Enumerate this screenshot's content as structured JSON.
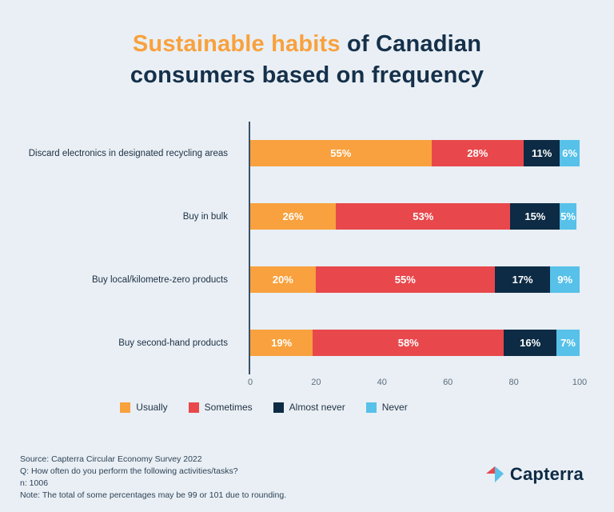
{
  "title": {
    "highlight": "Sustainable habits",
    "line1_rest": " of Canadian",
    "line2": "consumers based on frequency"
  },
  "chart_data": {
    "type": "bar",
    "orientation": "horizontal",
    "stacked": true,
    "categories": [
      "Discard electronics in designated recycling areas",
      "Buy in bulk",
      "Buy local/kilometre-zero products",
      "Buy second-hand products"
    ],
    "series": [
      {
        "name": "Usually",
        "color": "#f8a13e",
        "values": [
          55,
          26,
          20,
          19
        ]
      },
      {
        "name": "Sometimes",
        "color": "#e8484c",
        "values": [
          28,
          53,
          55,
          58
        ]
      },
      {
        "name": "Almost never",
        "color": "#0d2b44",
        "values": [
          11,
          15,
          17,
          16
        ]
      },
      {
        "name": "Never",
        "color": "#57c1e9",
        "values": [
          6,
          5,
          9,
          7
        ]
      }
    ],
    "x_ticks": [
      0,
      20,
      40,
      60,
      80,
      100
    ],
    "xlim": [
      0,
      100
    ],
    "value_suffix": "%",
    "legend_position": "bottom",
    "grid": false
  },
  "footer": {
    "source": "Source: Capterra Circular Economy Survey 2022",
    "question": "Q: How often do you perform the following activities/tasks?",
    "n": "n: 1006",
    "note": "Note: The total of some percentages may be 99 or 101 due to rounding."
  },
  "logo": {
    "text": "Capterra"
  },
  "colors": {
    "background": "#e9eff4",
    "title_accent": "#f8a13e",
    "title_main": "#15304a",
    "axis": "#39506a"
  }
}
